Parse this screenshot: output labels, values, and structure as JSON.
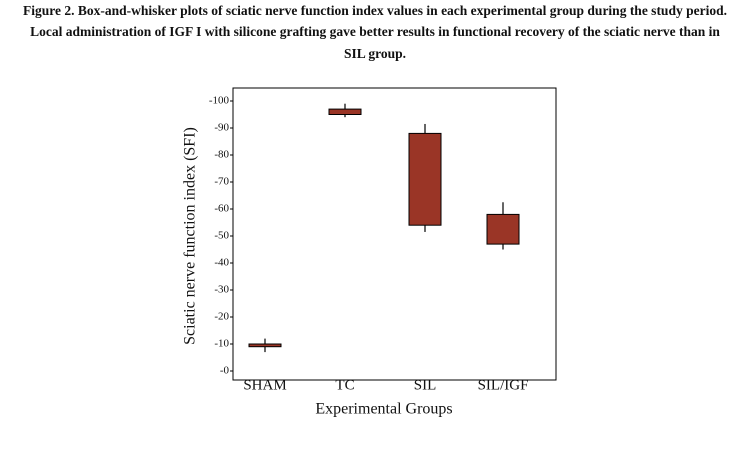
{
  "chart_data": {
    "type": "box",
    "title": [
      "Figure 2. Box-and-whisker plots of sciatic nerve function index values in each experimental group during the study period.",
      "Local administration of IGF I with silicone grafting gave better results in functional recovery of the sciatic nerve than in",
      "SIL group."
    ],
    "x_label": "Experimental Groups",
    "y_label": "Sciatic nerve function index (SFI)",
    "categories": [
      "SHAM",
      "TC",
      "SIL",
      "SIL/IGF"
    ],
    "color": "#9a3526",
    "ylim": [
      0,
      -100
    ],
    "yticks": [
      {
        "value": 0,
        "label": "-0"
      },
      -10,
      -20,
      -30,
      -40,
      -50,
      -60,
      -70,
      -80,
      -90,
      -100
    ],
    "boxes": [
      {
        "min": -12,
        "q1": -10,
        "q3": -9,
        "max": -7
      },
      {
        "min": -99,
        "q1": -97,
        "q3": -95,
        "max": -94
      },
      {
        "min": -91.5,
        "q1": -88,
        "q3": -54,
        "max": -51.5
      },
      {
        "min": -62.5,
        "q1": -58,
        "q3": -47,
        "max": -45
      }
    ]
  }
}
